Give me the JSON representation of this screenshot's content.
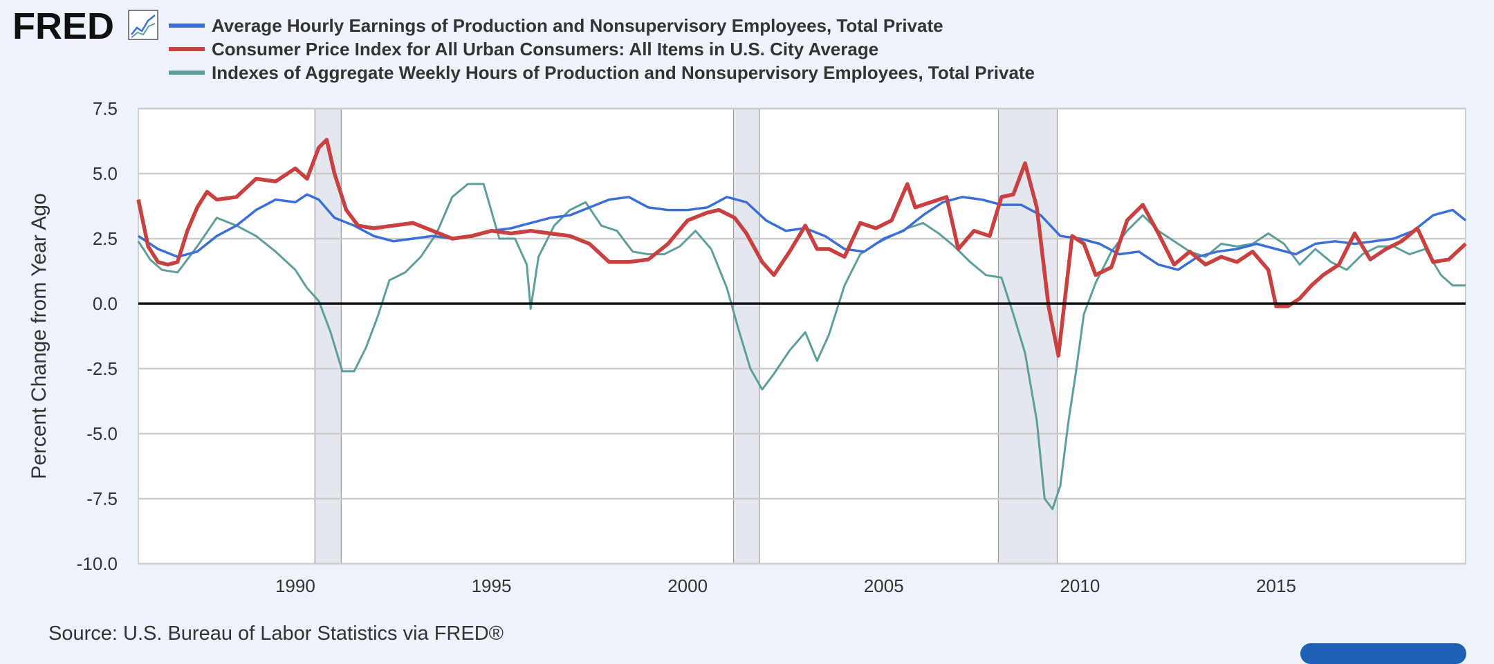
{
  "header": {
    "logo": "FRED",
    "logo_icon": "line-chart-icon"
  },
  "footer": {
    "source": "Source: U.S. Bureau of Labor Statistics via FRED®"
  },
  "chart_data": {
    "type": "line",
    "ylabel": "Percent Change from Year Ago",
    "ylim": [
      -10.0,
      7.5
    ],
    "yticks": [
      "7.5",
      "5.0",
      "2.5",
      "0.0",
      "-2.5",
      "-5.0",
      "-7.5",
      "-10.0"
    ],
    "xlim": [
      1986.0,
      2019.83
    ],
    "xticks": [
      "1990",
      "1995",
      "2000",
      "2005",
      "2010",
      "2015"
    ],
    "zero_line": 0,
    "grid": "horizontal",
    "legend_position": "top",
    "recessions": [
      [
        1990.5,
        1991.17
      ],
      [
        2001.17,
        2001.83
      ],
      [
        2007.92,
        2009.42
      ]
    ],
    "series": [
      {
        "name": "Average Hourly Earnings of Production and Nonsupervisory Employees, Total Private",
        "color": "#3a6fd8",
        "x": [
          1986.0,
          1986.5,
          1987.0,
          1987.5,
          1988.0,
          1988.5,
          1989.0,
          1989.5,
          1990.0,
          1990.3,
          1990.6,
          1991.0,
          1991.5,
          1992.0,
          1992.5,
          1993.0,
          1993.5,
          1994.0,
          1994.5,
          1995.0,
          1995.5,
          1996.0,
          1996.5,
          1997.0,
          1997.5,
          1998.0,
          1998.5,
          1999.0,
          1999.5,
          2000.0,
          2000.5,
          2001.0,
          2001.5,
          2002.0,
          2002.5,
          2003.0,
          2003.5,
          2004.0,
          2004.5,
          2005.0,
          2005.5,
          2006.0,
          2006.5,
          2007.0,
          2007.5,
          2008.0,
          2008.5,
          2009.0,
          2009.5,
          2010.0,
          2010.5,
          2011.0,
          2011.5,
          2012.0,
          2012.5,
          2013.0,
          2013.5,
          2014.0,
          2014.5,
          2015.0,
          2015.5,
          2016.0,
          2016.5,
          2017.0,
          2017.5,
          2018.0,
          2018.5,
          2019.0,
          2019.5,
          2019.83
        ],
        "values": [
          2.6,
          2.1,
          1.8,
          2.0,
          2.6,
          3.0,
          3.6,
          4.0,
          3.9,
          4.2,
          4.0,
          3.3,
          3.0,
          2.6,
          2.4,
          2.5,
          2.6,
          2.5,
          2.6,
          2.8,
          2.9,
          3.1,
          3.3,
          3.4,
          3.7,
          4.0,
          4.1,
          3.7,
          3.6,
          3.6,
          3.7,
          4.1,
          3.9,
          3.2,
          2.8,
          2.9,
          2.6,
          2.1,
          2.0,
          2.5,
          2.8,
          3.4,
          3.9,
          4.1,
          4.0,
          3.8,
          3.8,
          3.4,
          2.6,
          2.5,
          2.3,
          1.9,
          2.0,
          1.5,
          1.3,
          1.8,
          2.0,
          2.1,
          2.3,
          2.1,
          1.9,
          2.3,
          2.4,
          2.3,
          2.4,
          2.5,
          2.8,
          3.4,
          3.6,
          3.2
        ]
      },
      {
        "name": "Consumer Price Index for All Urban Consumers: All Items in U.S. City Average",
        "color": "#c94040",
        "x": [
          1986.0,
          1986.25,
          1986.5,
          1986.75,
          1987.0,
          1987.25,
          1987.5,
          1987.75,
          1988.0,
          1988.5,
          1989.0,
          1989.5,
          1990.0,
          1990.3,
          1990.6,
          1990.8,
          1991.0,
          1991.3,
          1991.6,
          1992.0,
          1992.5,
          1993.0,
          1993.5,
          1994.0,
          1994.5,
          1995.0,
          1995.5,
          1996.0,
          1996.5,
          1997.0,
          1997.5,
          1998.0,
          1998.5,
          1999.0,
          1999.5,
          2000.0,
          2000.5,
          2000.8,
          2001.2,
          2001.5,
          2001.9,
          2002.2,
          2002.6,
          2003.0,
          2003.3,
          2003.6,
          2004.0,
          2004.4,
          2004.8,
          2005.2,
          2005.6,
          2005.8,
          2006.2,
          2006.6,
          2006.9,
          2007.3,
          2007.7,
          2008.0,
          2008.3,
          2008.6,
          2008.9,
          2009.2,
          2009.45,
          2009.8,
          2010.1,
          2010.4,
          2010.8,
          2011.2,
          2011.6,
          2012.0,
          2012.4,
          2012.8,
          2013.2,
          2013.6,
          2014.0,
          2014.4,
          2014.8,
          2015.0,
          2015.3,
          2015.6,
          2015.9,
          2016.2,
          2016.6,
          2017.0,
          2017.4,
          2017.8,
          2018.2,
          2018.6,
          2019.0,
          2019.4,
          2019.83
        ],
        "values": [
          4.0,
          2.2,
          1.6,
          1.5,
          1.6,
          2.8,
          3.7,
          4.3,
          4.0,
          4.1,
          4.8,
          4.7,
          5.2,
          4.8,
          6.0,
          6.3,
          5.0,
          3.6,
          3.0,
          2.9,
          3.0,
          3.1,
          2.8,
          2.5,
          2.6,
          2.8,
          2.7,
          2.8,
          2.7,
          2.6,
          2.3,
          1.6,
          1.6,
          1.7,
          2.3,
          3.2,
          3.5,
          3.6,
          3.3,
          2.7,
          1.6,
          1.1,
          2.0,
          3.0,
          2.1,
          2.1,
          1.8,
          3.1,
          2.9,
          3.2,
          4.6,
          3.7,
          3.9,
          4.1,
          2.1,
          2.8,
          2.6,
          4.1,
          4.2,
          5.4,
          3.7,
          -0.1,
          -2.0,
          2.6,
          2.3,
          1.1,
          1.4,
          3.2,
          3.8,
          2.7,
          1.5,
          2.0,
          1.5,
          1.8,
          1.6,
          2.0,
          1.3,
          -0.1,
          -0.1,
          0.2,
          0.7,
          1.1,
          1.5,
          2.7,
          1.7,
          2.1,
          2.4,
          2.9,
          1.6,
          1.7,
          2.3
        ]
      },
      {
        "name": "Indexes of Aggregate Weekly Hours of Production and Nonsupervisory Employees, Total Private",
        "color": "#5c9e9a",
        "x": [
          1986.0,
          1986.3,
          1986.6,
          1987.0,
          1987.5,
          1988.0,
          1988.5,
          1989.0,
          1989.5,
          1990.0,
          1990.3,
          1990.6,
          1990.9,
          1991.2,
          1991.5,
          1991.8,
          1992.1,
          1992.4,
          1992.8,
          1993.2,
          1993.6,
          1994.0,
          1994.4,
          1994.8,
          1995.2,
          1995.6,
          1995.9,
          1996.0,
          1996.2,
          1996.6,
          1997.0,
          1997.4,
          1997.8,
          1998.2,
          1998.6,
          1999.0,
          1999.4,
          1999.8,
          2000.2,
          2000.6,
          2001.0,
          2001.3,
          2001.6,
          2001.9,
          2002.2,
          2002.6,
          2003.0,
          2003.3,
          2003.6,
          2004.0,
          2004.4,
          2004.8,
          2005.2,
          2005.6,
          2006.0,
          2006.4,
          2006.8,
          2007.2,
          2007.6,
          2008.0,
          2008.3,
          2008.6,
          2008.9,
          2009.1,
          2009.3,
          2009.5,
          2009.7,
          2009.9,
          2010.1,
          2010.4,
          2010.8,
          2011.2,
          2011.6,
          2012.0,
          2012.4,
          2012.8,
          2013.2,
          2013.6,
          2014.0,
          2014.4,
          2014.8,
          2015.2,
          2015.6,
          2016.0,
          2016.4,
          2016.8,
          2017.2,
          2017.6,
          2018.0,
          2018.4,
          2018.8,
          2019.2,
          2019.5,
          2019.83
        ],
        "values": [
          2.4,
          1.7,
          1.3,
          1.2,
          2.2,
          3.3,
          3.0,
          2.6,
          2.0,
          1.3,
          0.6,
          0.1,
          -1.1,
          -2.6,
          -2.6,
          -1.7,
          -0.5,
          0.9,
          1.2,
          1.8,
          2.7,
          4.1,
          4.6,
          4.6,
          2.5,
          2.5,
          1.5,
          -0.2,
          1.8,
          3.0,
          3.6,
          3.9,
          3.0,
          2.8,
          2.0,
          1.9,
          1.9,
          2.2,
          2.8,
          2.1,
          0.6,
          -1.0,
          -2.5,
          -3.3,
          -2.7,
          -1.8,
          -1.1,
          -2.2,
          -1.2,
          0.7,
          1.9,
          2.3,
          2.6,
          2.9,
          3.1,
          2.7,
          2.2,
          1.6,
          1.1,
          1.0,
          -0.4,
          -1.9,
          -4.5,
          -7.5,
          -7.9,
          -7.0,
          -4.6,
          -2.6,
          -0.4,
          0.8,
          2.0,
          2.8,
          3.4,
          2.8,
          2.4,
          2.0,
          1.8,
          2.3,
          2.2,
          2.3,
          2.7,
          2.3,
          1.5,
          2.1,
          1.6,
          1.3,
          1.9,
          2.2,
          2.2,
          1.9,
          2.1,
          1.1,
          0.7,
          0.7
        ]
      }
    ]
  }
}
